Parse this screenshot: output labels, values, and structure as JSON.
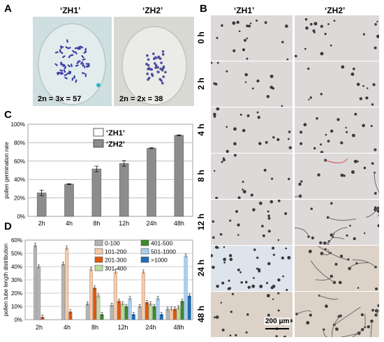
{
  "panel_a": {
    "letter": "A",
    "zh1_label": "‘ZH1’",
    "zh2_label": "‘ZH2’",
    "zh1_ploidy": "2n = 3x = 57",
    "zh2_ploidy": "2n = 2x = 38"
  },
  "panel_b": {
    "letter": "B",
    "zh1_label": "‘ZH1’",
    "zh2_label": "‘ZH2’",
    "rows": [
      "0 h",
      "2 h",
      "4 h",
      "8 h",
      "12 h",
      "24 h",
      "48 h"
    ],
    "scale_bar": "200 μm"
  },
  "colors": {
    "zh1_bar": "#ffffff",
    "zh2_bar": "#8c8c8c",
    "d_0_100": "#b4b4b4",
    "d_101_200": "#f9c9a6",
    "d_201_300": "#e0570f",
    "d_301_400": "#b6dea0",
    "d_401_500": "#3c8a2a",
    "d_501_1000": "#a9cfee",
    "d_gt_1000": "#1f6fb4"
  },
  "chart_data": [
    {
      "panel": "C",
      "type": "bar",
      "ylabel": "pollen germination rate",
      "xlabel": "",
      "categories": [
        "2h",
        "4h",
        "8h",
        "12h",
        "24h",
        "48h"
      ],
      "yticks": [
        "0%",
        "20%",
        "40%",
        "60%",
        "80%",
        "100%"
      ],
      "ylim": [
        0,
        100
      ],
      "grid": true,
      "legend": "top-left",
      "series": [
        {
          "name": "‘ZH1’",
          "values": [
            0,
            0,
            0,
            0,
            0,
            0
          ],
          "errors": [
            0,
            0,
            0,
            0,
            0,
            0
          ],
          "color": "#ffffff"
        },
        {
          "name": "‘ZH2’",
          "values": [
            25.5,
            35,
            51.5,
            57.5,
            74,
            88
          ],
          "errors": [
            3,
            0.5,
            3,
            3,
            0.5,
            0.5
          ],
          "color": "#8c8c8c"
        }
      ]
    },
    {
      "panel": "D",
      "type": "bar",
      "ylabel": "pollen tube length distribution",
      "xlabel": "",
      "categories": [
        "2h",
        "4h",
        "8h",
        "12h",
        "24h",
        "48h"
      ],
      "yticks": [
        "0%",
        "10%",
        "20%",
        "30%",
        "40%",
        "50%",
        "60%"
      ],
      "ylim": [
        0,
        60
      ],
      "grid": true,
      "legend": "top-right",
      "groups": [
        {
          "series": [
            {
              "name": "0-100",
              "values": [
                56,
                0,
                0,
                0,
                0,
                0
              ],
              "errors": [
                1.5,
                0,
                0,
                0,
                0,
                0
              ]
            }
          ]
        },
        {
          "series": []
        }
      ],
      "series": [
        {
          "name": "0-100",
          "color": "#b4b4b4",
          "zh1": [
            56,
            42,
            12,
            11,
            10,
            8
          ],
          "zh2": [
            40,
            0,
            0,
            0,
            0,
            0
          ],
          "values": [
            56,
            42,
            12,
            11,
            10,
            8
          ]
        },
        {
          "name": "101-200",
          "color": "#f9c9a6",
          "values": [
            40,
            54,
            38,
            36,
            36,
            8
          ]
        },
        {
          "name": "201-300",
          "color": "#e0570f",
          "values": [
            2,
            6,
            24,
            14,
            13,
            8
          ]
        },
        {
          "name": "301-400",
          "color": "#b6dea0",
          "values": [
            0,
            0,
            18,
            12,
            12,
            9
          ]
        },
        {
          "name": "401-500",
          "color": "#3c8a2a",
          "values": [
            0,
            0,
            4,
            10,
            10,
            14
          ]
        },
        {
          "name": "501-1000",
          "color": "#a9cfee",
          "values": [
            0,
            0,
            0,
            16,
            16,
            48
          ]
        },
        {
          "name": ">1000",
          "color": "#1f6fb4",
          "values": [
            0,
            0,
            0,
            4,
            4,
            18
          ]
        }
      ],
      "bars_per_category": [
        {
          "category": "2h",
          "bars": [
            [
              "0-100",
              56
            ],
            [
              "0-100",
              40
            ],
            [
              "201-300",
              2
            ]
          ]
        },
        {
          "category": "4h",
          "bars": [
            [
              "0-100",
              42
            ],
            [
              "101-200",
              54
            ],
            [
              "201-300",
              6
            ]
          ]
        },
        {
          "category": "8h",
          "bars": [
            [
              "0-100",
              12
            ],
            [
              "101-200",
              38
            ],
            [
              "201-300",
              24
            ],
            [
              "301-400",
              18
            ],
            [
              "401-500",
              4
            ]
          ]
        },
        {
          "category": "12h",
          "bars": [
            [
              "0-100",
              11
            ],
            [
              "101-200",
              36
            ],
            [
              "201-300",
              14
            ],
            [
              "301-400",
              12
            ],
            [
              "401-500",
              10
            ],
            [
              "501-1000",
              16
            ],
            [
              ">1000",
              4
            ]
          ]
        },
        {
          "category": "24h",
          "bars": [
            [
              "0-100",
              10
            ],
            [
              "101-200",
              36
            ],
            [
              "201-300",
              13
            ],
            [
              "301-400",
              12
            ],
            [
              "401-500",
              10
            ],
            [
              "501-1000",
              16
            ],
            [
              ">1000",
              4
            ]
          ]
        },
        {
          "category": "48h",
          "bars": [
            [
              "0-100",
              8
            ],
            [
              "101-200",
              8
            ],
            [
              "201-300",
              8
            ],
            [
              "301-400",
              9
            ],
            [
              "401-500",
              14
            ],
            [
              "501-1000",
              48
            ],
            [
              ">1000",
              18
            ]
          ]
        }
      ]
    }
  ]
}
